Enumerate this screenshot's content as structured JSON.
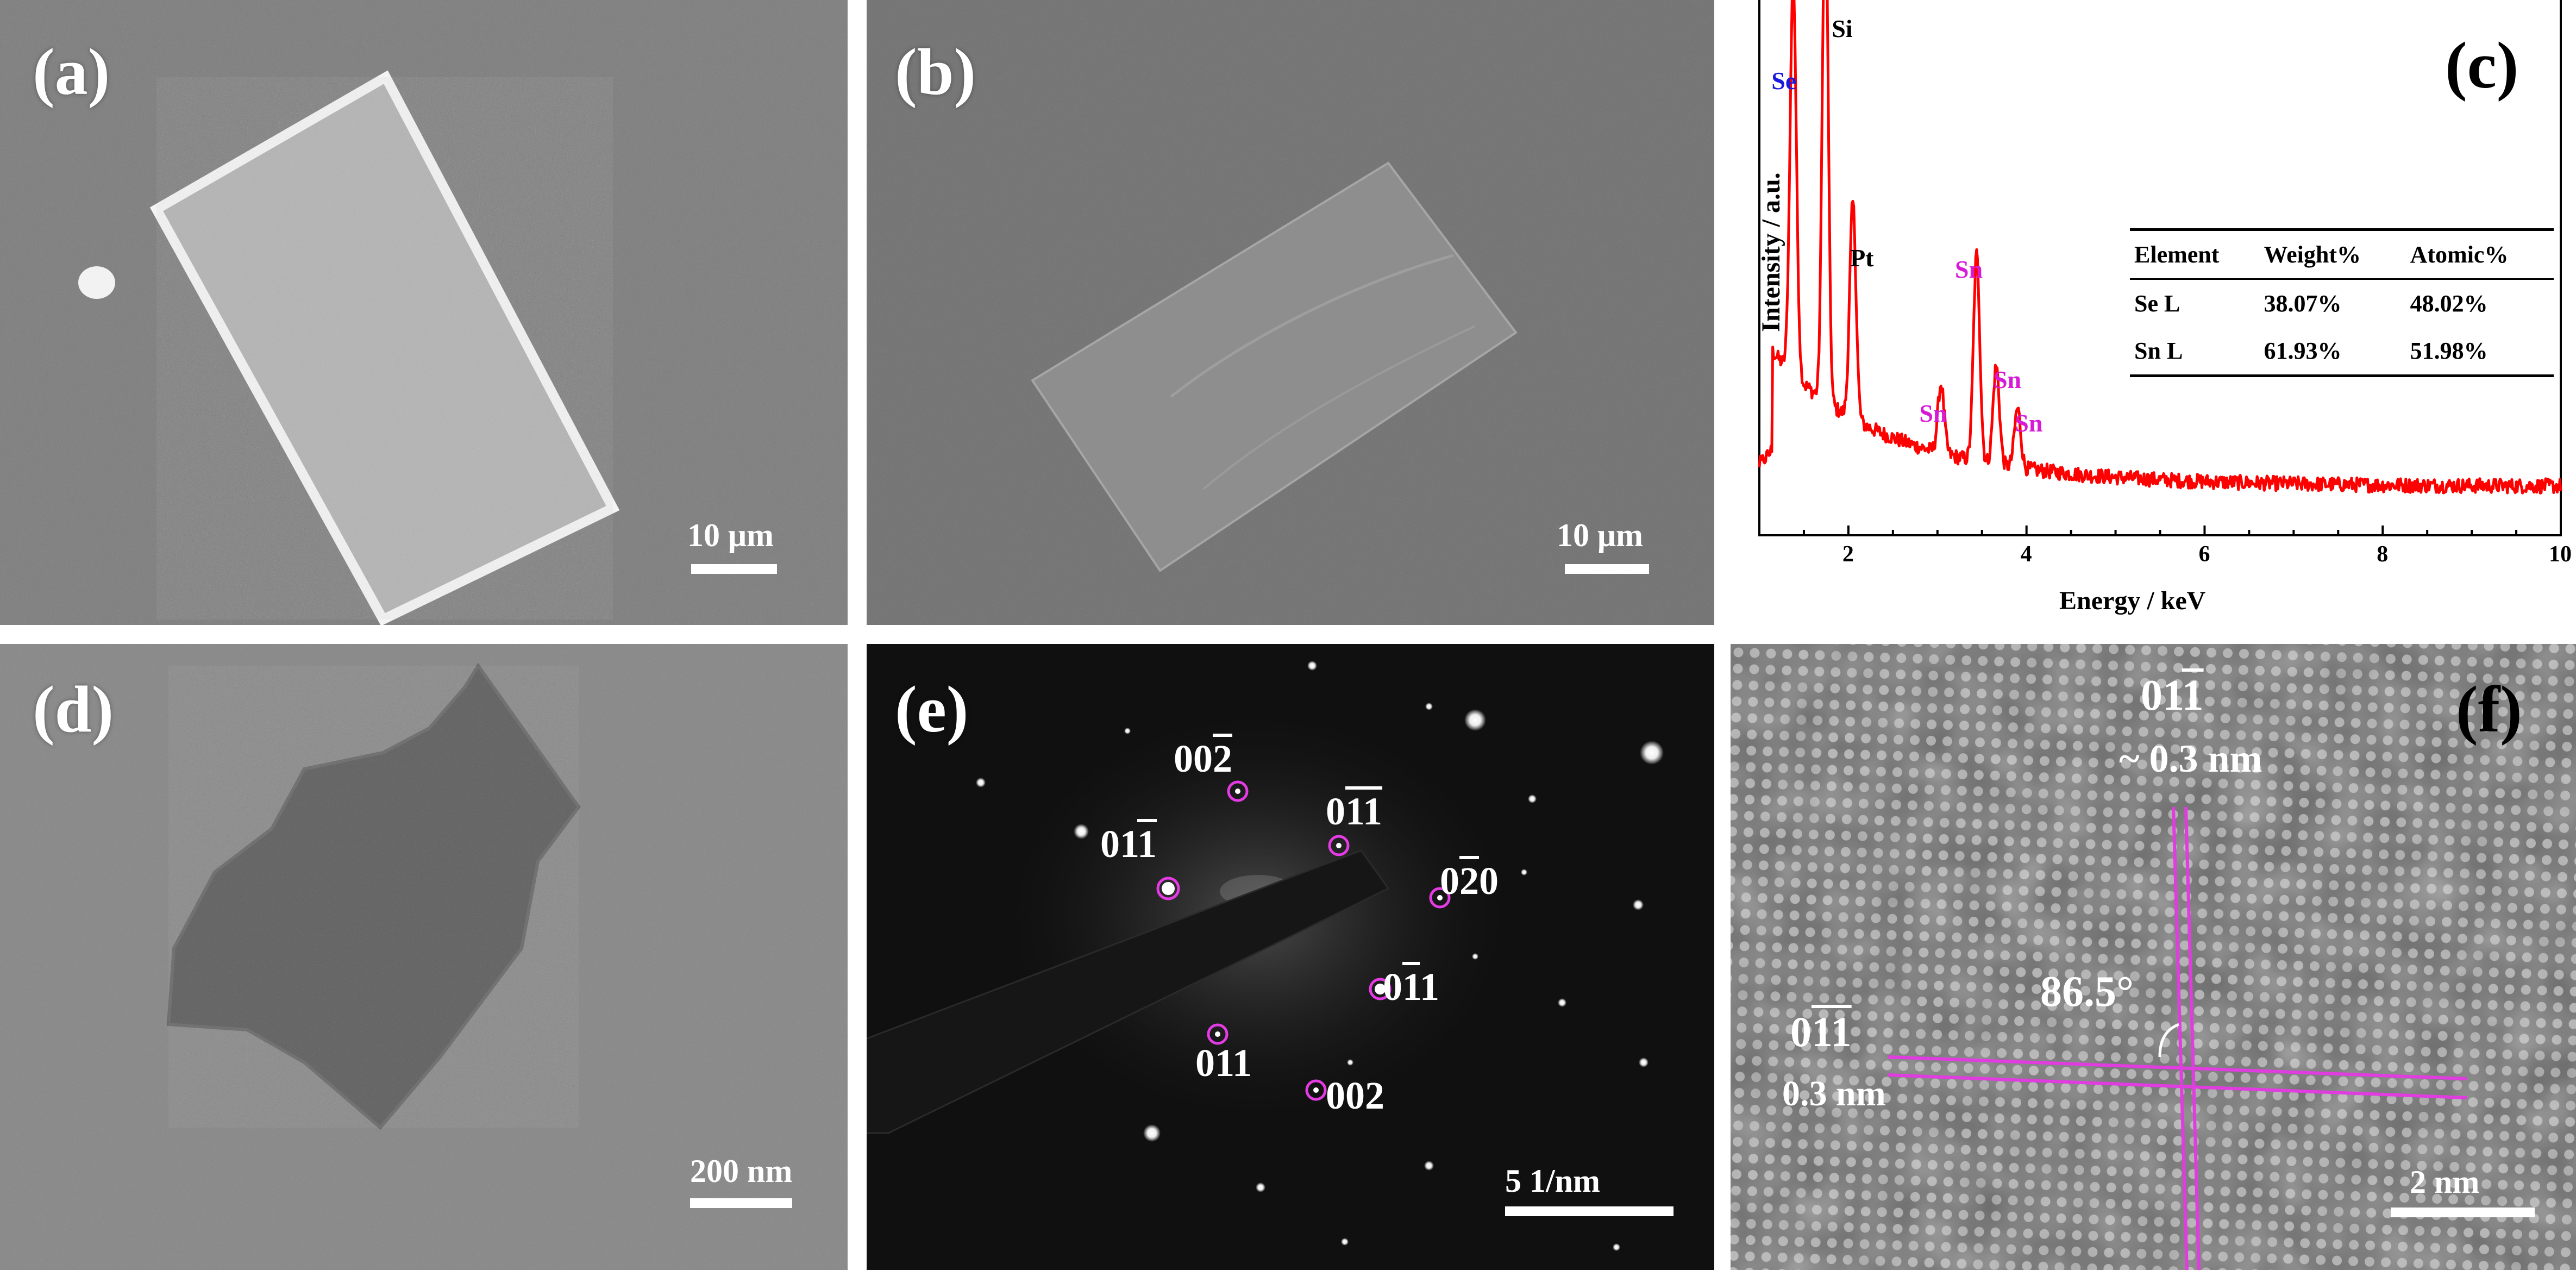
{
  "panels": {
    "a": {
      "label": "(a)",
      "scale_text": "10 μm"
    },
    "b": {
      "label": "(b)",
      "scale_text": "10 μm"
    },
    "c": {
      "label": "(c)"
    },
    "d": {
      "label": "(d)",
      "scale_text": "200 nm"
    },
    "e": {
      "label": "(e)",
      "scale_text": "5  1/nm"
    },
    "f": {
      "label": "(f)",
      "scale_text": "2 nm"
    }
  },
  "eds_table": {
    "headers": [
      "Element",
      "Weight%",
      "Atomic%"
    ],
    "rows": [
      [
        "Se L",
        "38.07%",
        "48.02%"
      ],
      [
        "Sn L",
        "61.93%",
        "51.98%"
      ]
    ]
  },
  "chart_data": {
    "type": "line",
    "xlabel": "Energy / keV",
    "ylabel": "Intensity / a.u.",
    "xlim": [
      1,
      10
    ],
    "xticks": [
      2,
      4,
      6,
      8,
      10
    ],
    "grid": false,
    "series_color": "#ff0000",
    "peaks": [
      {
        "label": "Se",
        "energy": 1.38,
        "height": 0.8,
        "color": "#1a1adc"
      },
      {
        "label": "Si",
        "energy": 1.74,
        "height": 1.1,
        "color": "#000000"
      },
      {
        "label": "Pt",
        "energy": 2.05,
        "height": 0.44,
        "color": "#000000"
      },
      {
        "label": "Sn",
        "energy": 3.04,
        "height": 0.14,
        "color": "#d61ad6"
      },
      {
        "label": "Sn",
        "energy": 3.44,
        "height": 0.42,
        "color": "#d61ad6"
      },
      {
        "label": "Sn",
        "energy": 3.66,
        "height": 0.2,
        "color": "#d61ad6"
      },
      {
        "label": "Sn",
        "energy": 3.9,
        "height": 0.12,
        "color": "#d61ad6"
      }
    ]
  },
  "diffraction_spots": [
    {
      "idx": [
        0,
        0,
        2
      ],
      "bar": [
        false,
        false,
        true
      ]
    },
    {
      "idx": [
        0,
        1,
        1
      ],
      "bar": [
        false,
        true,
        true
      ]
    },
    {
      "idx": [
        0,
        1,
        1
      ],
      "bar": [
        false,
        false,
        true
      ]
    },
    {
      "idx": [
        0,
        2,
        0
      ],
      "bar": [
        false,
        true,
        false
      ]
    },
    {
      "idx": [
        0,
        1,
        1
      ],
      "bar": [
        false,
        true,
        false
      ]
    },
    {
      "idx": [
        0,
        1,
        1
      ],
      "bar": [
        false,
        false,
        false
      ]
    },
    {
      "idx": [
        0,
        0,
        2
      ],
      "bar": [
        false,
        false,
        false
      ]
    }
  ],
  "hrtem": {
    "plane_top": {
      "idx": [
        0,
        1,
        1
      ],
      "bar": [
        false,
        false,
        true
      ]
    },
    "spacing_top": "~ 0.3 nm",
    "plane_left": {
      "idx": [
        0,
        1,
        1
      ],
      "bar": [
        false,
        true,
        true
      ]
    },
    "spacing_left": "0.3 nm",
    "angle": "86.5°",
    "line_color": "#e03ce0"
  }
}
